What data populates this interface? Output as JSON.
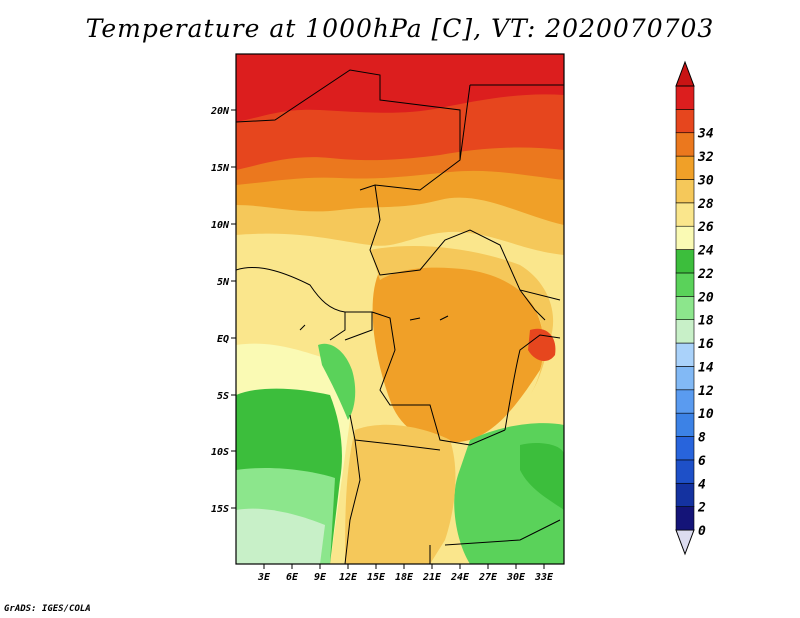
{
  "title": "Temperature at 1000hPa [C], VT: 2020070703",
  "credit": "GrADS: IGES/COLA",
  "map": {
    "lat_labels": [
      "20N",
      "15N",
      "10N",
      "5N",
      "EQ",
      "5S",
      "10S",
      "15S"
    ],
    "lon_labels": [
      "3E",
      "6E",
      "9E",
      "12E",
      "15E",
      "18E",
      "21E",
      "24E",
      "27E",
      "30E",
      "33E"
    ]
  },
  "colorbar": {
    "levels": [
      "0",
      "2",
      "4",
      "6",
      "8",
      "10",
      "12",
      "14",
      "16",
      "18",
      "20",
      "22",
      "24",
      "26",
      "28",
      "30",
      "32",
      "34"
    ],
    "colors": [
      "#dcdcf0",
      "#141478",
      "#1432a0",
      "#1e50c8",
      "#2864dc",
      "#3c82e6",
      "#5a9bf0",
      "#82b9f5",
      "#aad2fa",
      "#c8f0c8",
      "#8ce68c",
      "#5ad25a",
      "#3cbe3c",
      "#fafab4",
      "#fae68c",
      "#f5c85a",
      "#f0a028",
      "#eb781e",
      "#e6461e",
      "#dc1e1e",
      "#c81414"
    ]
  }
}
